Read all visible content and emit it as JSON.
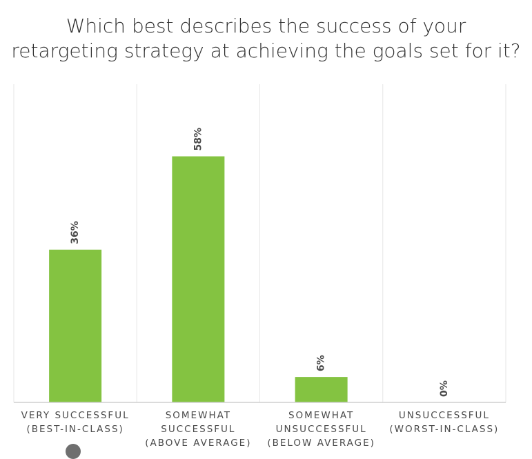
{
  "chart_data": {
    "type": "bar",
    "title_lines": [
      "Which best describes the success of your",
      "retargeting strategy at achieving the goals set for it?"
    ],
    "categories": [
      [
        "VERY SUCCESSFUL",
        "(BEST-IN-CLASS)"
      ],
      [
        "SOMEWHAT",
        "SUCCESSFUL",
        "(ABOVE AVERAGE)"
      ],
      [
        "SOMEWHAT",
        "UNSUCCESSFUL",
        "(BELOW AVERAGE)"
      ],
      [
        "UNSUCCESSFUL",
        "(WORST-IN-CLASS)"
      ]
    ],
    "values": [
      36,
      58,
      6,
      0
    ],
    "value_labels": [
      "36%",
      "58%",
      "6%",
      "0%"
    ],
    "ylim": [
      0,
      75
    ],
    "grid": "vertical category separators",
    "bar_color": "#84c341",
    "grid_color": "#e6e6e6",
    "axis_color": "#cfcfcf",
    "text_color": "#4a4a4a"
  }
}
